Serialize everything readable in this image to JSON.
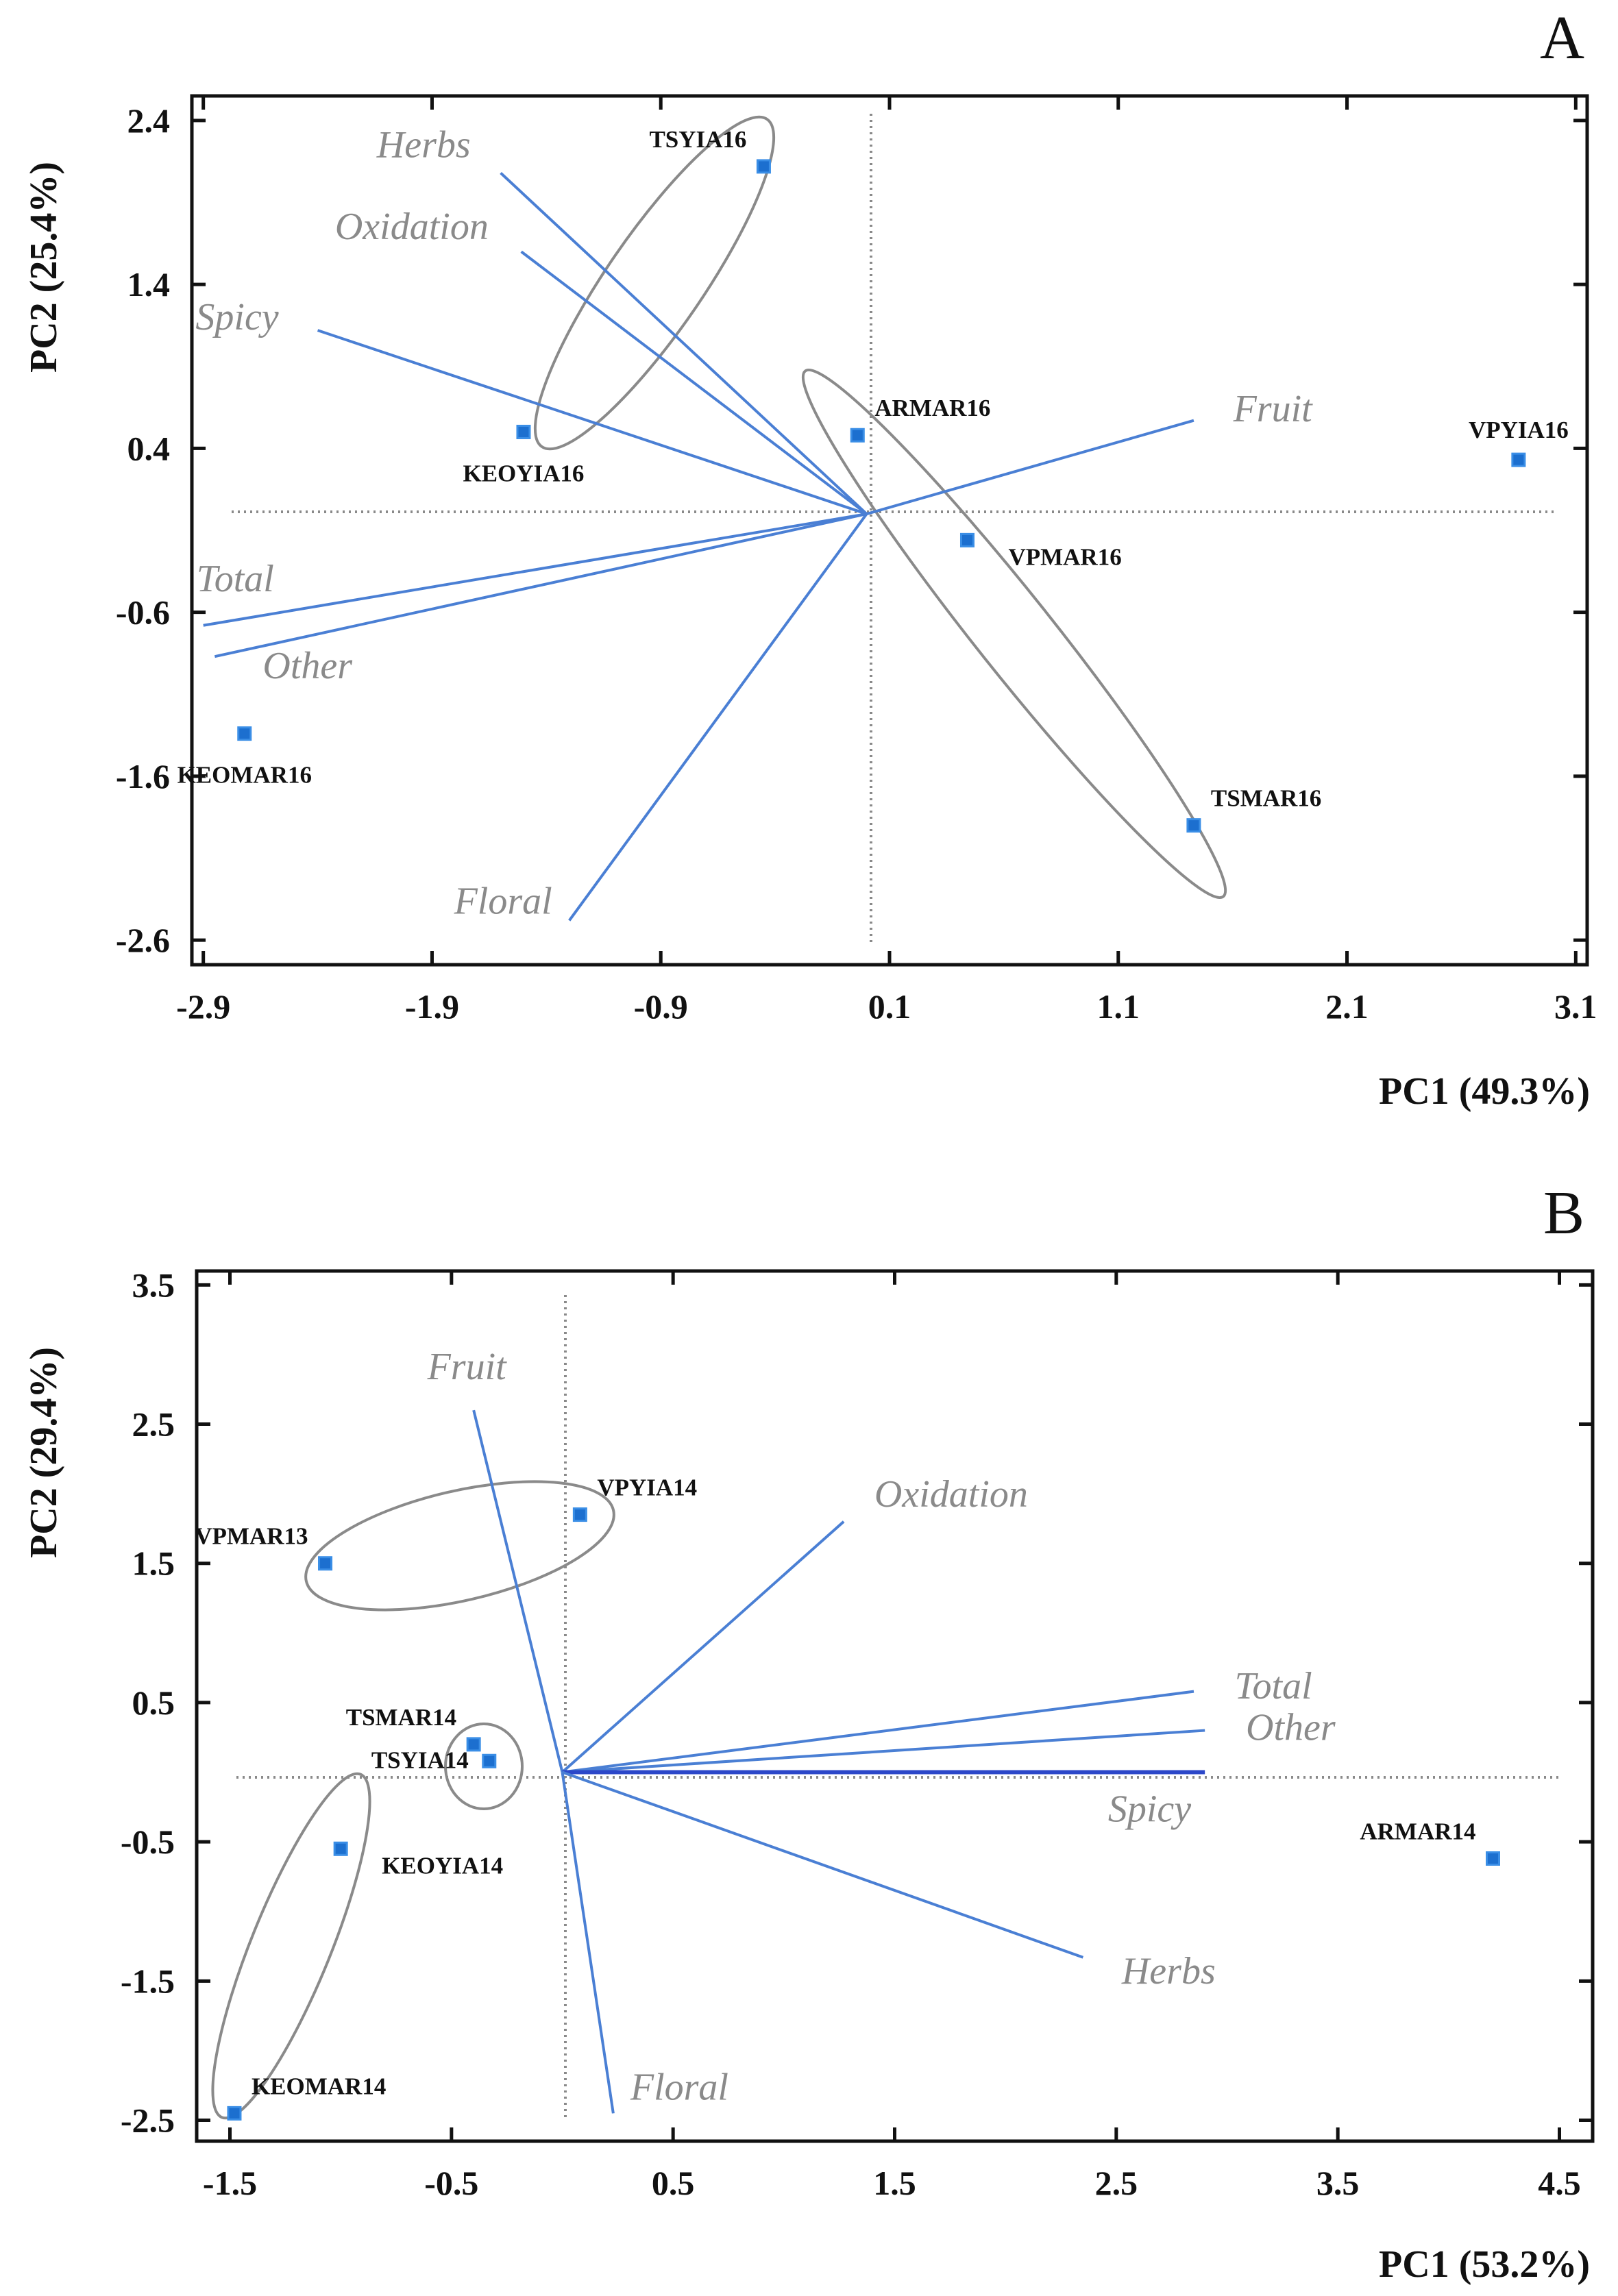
{
  "chart_data": [
    {
      "type": "scatter",
      "subtype": "pca-biplot",
      "panel_label": "A",
      "xlabel": "PC1 (49.3%)",
      "ylabel": "PC2 (25.4%)",
      "xlim": [
        -2.95,
        3.15
      ],
      "ylim": [
        -2.75,
        2.55
      ],
      "xticks": [
        -2.9,
        -1.9,
        -0.9,
        0.1,
        1.1,
        2.1,
        3.1
      ],
      "xtick_labels": [
        "-2.9",
        "-1.9",
        "-0.9",
        "0.1",
        "1.1",
        "2.1",
        "3.1"
      ],
      "yticks": [
        -2.6,
        -1.6,
        -0.6,
        0.4,
        1.4,
        2.4
      ],
      "ytick_labels": [
        "-2.6",
        "-1.6",
        "-0.6",
        "0.4",
        "1.4",
        "2.4"
      ],
      "grid": false,
      "reference_lines": {
        "x": 0.0,
        "y": 0.0
      },
      "points": [
        {
          "label": "TSYIA16",
          "x": -0.45,
          "y": 2.12,
          "label_pos": "top-left"
        },
        {
          "label": "KEOYIA16",
          "x": -1.5,
          "y": 0.5,
          "label_pos": "bottom"
        },
        {
          "label": "ARMAR16",
          "x": -0.04,
          "y": 0.48,
          "label_pos": "top-right"
        },
        {
          "label": "VPYIA16",
          "x": 2.85,
          "y": 0.33,
          "label_pos": "top"
        },
        {
          "label": "VPMAR16",
          "x": 0.44,
          "y": -0.16,
          "label_pos": "bottom-right"
        },
        {
          "label": "KEOMAR16",
          "x": -2.72,
          "y": -1.34,
          "label_pos": "bottom"
        },
        {
          "label": "TSMAR16",
          "x": 1.43,
          "y": -1.9,
          "label_pos": "top-right"
        }
      ],
      "loadings": [
        {
          "name": "Herbs",
          "x": -1.6,
          "y": 2.08
        },
        {
          "name": "Oxidation",
          "x": -1.51,
          "y": 1.6
        },
        {
          "name": "Spicy",
          "x": -2.4,
          "y": 1.12
        },
        {
          "name": "Fruit",
          "x": 1.43,
          "y": 0.57
        },
        {
          "name": "Total",
          "x": -2.9,
          "y": -0.68
        },
        {
          "name": "Other",
          "x": -2.85,
          "y": -0.87
        },
        {
          "name": "Floral",
          "x": -1.3,
          "y": -2.48
        }
      ],
      "groups": [
        {
          "name": "TSYIA16-KEOYIA16 cluster",
          "members": [
            "TSYIA16",
            "KEOYIA16"
          ]
        },
        {
          "name": "ARMAR16-VPMAR16-TSMAR16 cluster",
          "members": [
            "ARMAR16",
            "VPMAR16",
            "TSMAR16"
          ]
        }
      ]
    },
    {
      "type": "scatter",
      "subtype": "pca-biplot",
      "panel_label": "B",
      "xlabel": "PC1 (53.2%)",
      "ylabel": "PC2 (29.4%)",
      "xlim": [
        -1.65,
        4.65
      ],
      "ylim": [
        -2.65,
        3.6
      ],
      "xticks": [
        -1.5,
        -0.5,
        0.5,
        1.5,
        2.5,
        3.5,
        4.5
      ],
      "xtick_labels": [
        "-1.5",
        "-0.5",
        "0.5",
        "1.5",
        "2.5",
        "3.5",
        "4.5"
      ],
      "yticks": [
        -2.5,
        -1.5,
        -0.5,
        0.5,
        1.5,
        2.5,
        3.5
      ],
      "ytick_labels": [
        "-2.5",
        "-1.5",
        "-0.5",
        "0.5",
        "1.5",
        "2.5",
        "3.5"
      ],
      "grid": false,
      "reference_lines": {
        "x": 0.0,
        "y": 0.0
      },
      "points": [
        {
          "label": "VPMAR13",
          "x": -1.07,
          "y": 1.5,
          "label_pos": "top-left"
        },
        {
          "label": "VPYIA14",
          "x": 0.08,
          "y": 1.85,
          "label_pos": "top-right"
        },
        {
          "label": "TSMAR14",
          "x": -0.4,
          "y": 0.2,
          "label_pos": "top-left"
        },
        {
          "label": "TSYIA14",
          "x": -0.33,
          "y": 0.08,
          "label_pos": "left"
        },
        {
          "label": "KEOYIA14",
          "x": -1.0,
          "y": -0.55,
          "label_pos": "bottom-right"
        },
        {
          "label": "KEOMAR14",
          "x": -1.48,
          "y": -2.45,
          "label_pos": "top-right"
        },
        {
          "label": "ARMAR14",
          "x": 4.2,
          "y": -0.62,
          "label_pos": "top-left"
        }
      ],
      "loadings": [
        {
          "name": "Fruit",
          "x": -0.4,
          "y": 2.6
        },
        {
          "name": "Oxidation",
          "x": 1.27,
          "y": 1.8
        },
        {
          "name": "Total",
          "x": 2.85,
          "y": 0.58
        },
        {
          "name": "Other",
          "x": 2.9,
          "y": 0.3
        },
        {
          "name": "Spicy",
          "x": 2.9,
          "y": 0.0
        },
        {
          "name": "Herbs",
          "x": 2.35,
          "y": -1.33
        },
        {
          "name": "Floral",
          "x": 0.23,
          "y": -2.45
        }
      ],
      "groups": [
        {
          "name": "VPMAR13-VPYIA14 cluster",
          "members": [
            "VPMAR13",
            "VPYIA14"
          ]
        },
        {
          "name": "TSMAR14-TSYIA14 cluster",
          "members": [
            "TSMAR14",
            "TSYIA14"
          ]
        },
        {
          "name": "KEOYIA14-KEOMAR14 cluster",
          "members": [
            "KEOYIA14",
            "KEOMAR14"
          ]
        }
      ]
    }
  ],
  "colors": {
    "loading_line": "#4a7fd4",
    "marker_fill": "#1c6fcf",
    "marker_stroke": "#3a8ee6",
    "ellipse": "#8a8a8a",
    "reference_line": "#8a8a8a",
    "axis": "#111111",
    "variable_text": "#8a8a8a"
  }
}
